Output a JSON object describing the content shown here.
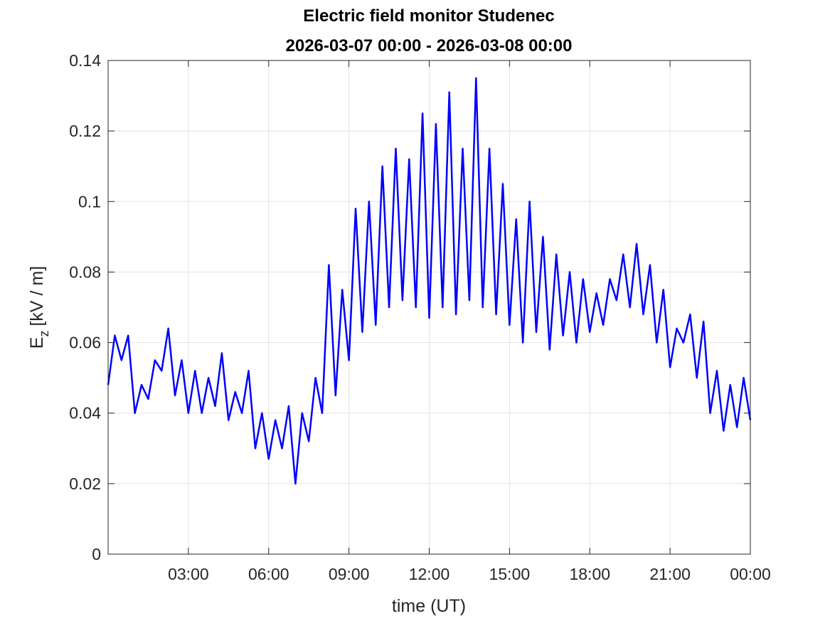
{
  "chart_data": {
    "type": "line",
    "title": "Electric field monitor Studenec",
    "subtitle": "2026-03-07 00:00 - 2026-03-08 00:00",
    "x_label": "time (UT)",
    "y_label": {
      "symbol": "E",
      "subscript": "z",
      "unit": "[kV / m]"
    },
    "x": [
      0,
      0.25,
      0.5,
      0.75,
      1,
      1.25,
      1.5,
      1.75,
      2,
      2.25,
      2.5,
      2.75,
      3,
      3.25,
      3.5,
      3.75,
      4,
      4.25,
      4.5,
      4.75,
      5,
      5.25,
      5.5,
      5.75,
      6,
      6.25,
      6.5,
      6.75,
      7,
      7.25,
      7.5,
      7.75,
      8,
      8.25,
      8.5,
      8.75,
      9,
      9.25,
      9.5,
      9.75,
      10,
      10.25,
      10.5,
      10.75,
      11,
      11.25,
      11.5,
      11.75,
      12,
      12.25,
      12.5,
      12.75,
      13,
      13.25,
      13.5,
      13.75,
      14,
      14.25,
      14.5,
      14.75,
      15,
      15.25,
      15.5,
      15.75,
      16,
      16.25,
      16.5,
      16.75,
      17,
      17.25,
      17.5,
      17.75,
      18,
      18.25,
      18.5,
      18.75,
      19,
      19.25,
      19.5,
      19.75,
      20,
      20.25,
      20.5,
      20.75,
      21,
      21.25,
      21.5,
      21.75,
      22,
      22.25,
      22.5,
      22.75,
      23,
      23.25,
      23.5,
      23.75,
      24
    ],
    "series": [
      {
        "color": "#0000ff",
        "values": [
          0.048,
          0.062,
          0.055,
          0.062,
          0.04,
          0.048,
          0.044,
          0.055,
          0.052,
          0.064,
          0.045,
          0.055,
          0.04,
          0.052,
          0.04,
          0.05,
          0.042,
          0.057,
          0.038,
          0.046,
          0.04,
          0.052,
          0.03,
          0.04,
          0.027,
          0.038,
          0.03,
          0.042,
          0.02,
          0.04,
          0.032,
          0.05,
          0.04,
          0.082,
          0.045,
          0.075,
          0.055,
          0.098,
          0.063,
          0.1,
          0.065,
          0.11,
          0.07,
          0.115,
          0.072,
          0.112,
          0.07,
          0.125,
          0.067,
          0.122,
          0.07,
          0.131,
          0.068,
          0.115,
          0.072,
          0.135,
          0.07,
          0.115,
          0.068,
          0.105,
          0.065,
          0.095,
          0.06,
          0.1,
          0.063,
          0.09,
          0.058,
          0.085,
          0.062,
          0.08,
          0.06,
          0.078,
          0.063,
          0.074,
          0.065,
          0.078,
          0.072,
          0.085,
          0.07,
          0.088,
          0.068,
          0.082,
          0.06,
          0.075,
          0.053,
          0.064,
          0.06,
          0.068,
          0.05,
          0.066,
          0.04,
          0.052,
          0.035,
          0.048,
          0.036,
          0.05,
          0.038
        ]
      }
    ],
    "xlim": [
      0,
      24
    ],
    "xticks": [
      {
        "value": 3,
        "label": "03:00"
      },
      {
        "value": 6,
        "label": "06:00"
      },
      {
        "value": 9,
        "label": "09:00"
      },
      {
        "value": 12,
        "label": "12:00"
      },
      {
        "value": 15,
        "label": "15:00"
      },
      {
        "value": 18,
        "label": "18:00"
      },
      {
        "value": 21,
        "label": "21:00"
      },
      {
        "value": 24,
        "label": "00:00"
      }
    ],
    "ylim": [
      0,
      0.14
    ],
    "yticks": [
      0,
      0.02,
      0.04,
      0.06,
      0.08,
      0.1,
      0.12,
      0.14
    ],
    "grid": true
  }
}
